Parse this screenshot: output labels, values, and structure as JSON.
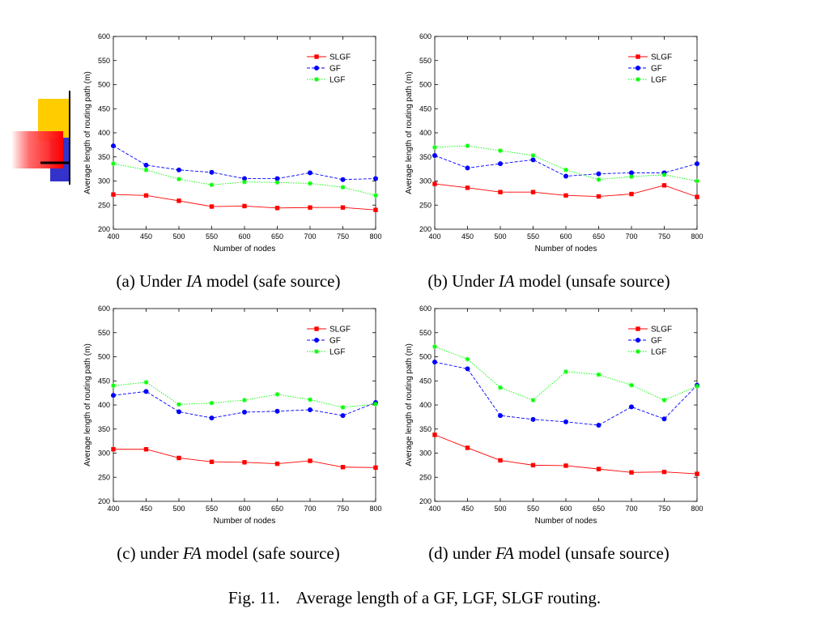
{
  "caption": "Fig. 11.    Average length of a GF, LGF, SLGF routing.",
  "chart_data": [
    {
      "type": "line",
      "caption_prefix": "(a) Under ",
      "caption_model": "IA",
      "caption_suffix": " model (safe source)",
      "xlabel": "Number of nodes",
      "ylabel": "Average length of routing path (m)",
      "x": [
        400,
        450,
        500,
        550,
        600,
        650,
        700,
        750,
        800
      ],
      "xlim": [
        400,
        800
      ],
      "ylim": [
        200,
        600
      ],
      "yticks": [
        200,
        250,
        300,
        350,
        400,
        450,
        500,
        550,
        600
      ],
      "legend_position": "top-right",
      "series": [
        {
          "name": "SLGF",
          "color": "#ff0000",
          "marker": "square",
          "values": [
            272,
            270,
            259,
            247,
            248,
            244,
            245,
            245,
            240
          ]
        },
        {
          "name": "GF",
          "color": "#0000ff",
          "marker": "circle",
          "values": [
            373,
            333,
            323,
            318,
            305,
            305,
            317,
            303,
            305
          ]
        },
        {
          "name": "LGF",
          "color": "#00ff00",
          "marker": "star",
          "values": [
            336,
            323,
            304,
            292,
            298,
            297,
            295,
            287,
            270
          ]
        }
      ]
    },
    {
      "type": "line",
      "caption_prefix": "(b) Under ",
      "caption_model": "IA",
      "caption_suffix": " model (unsafe source)",
      "xlabel": "Number of nodes",
      "ylabel": "Average length of routing path (m)",
      "x": [
        400,
        450,
        500,
        550,
        600,
        650,
        700,
        750,
        800
      ],
      "xlim": [
        400,
        800
      ],
      "ylim": [
        200,
        600
      ],
      "yticks": [
        200,
        250,
        300,
        350,
        400,
        450,
        500,
        550,
        600
      ],
      "legend_position": "top-right",
      "series": [
        {
          "name": "SLGF",
          "color": "#ff0000",
          "marker": "square",
          "values": [
            294,
            286,
            277,
            277,
            270,
            268,
            273,
            291,
            267
          ]
        },
        {
          "name": "GF",
          "color": "#0000ff",
          "marker": "circle",
          "values": [
            353,
            327,
            336,
            344,
            310,
            315,
            317,
            317,
            336
          ]
        },
        {
          "name": "LGF",
          "color": "#00ff00",
          "marker": "star",
          "values": [
            370,
            373,
            363,
            353,
            323,
            303,
            309,
            313,
            300
          ]
        }
      ]
    },
    {
      "type": "line",
      "caption_prefix": "(c) under ",
      "caption_model": "FA",
      "caption_suffix": " model (safe source)",
      "xlabel": "Number of nodes",
      "ylabel": "Average length of routing path (m)",
      "x": [
        400,
        450,
        500,
        550,
        600,
        650,
        700,
        750,
        800
      ],
      "xlim": [
        400,
        800
      ],
      "ylim": [
        200,
        600
      ],
      "yticks": [
        200,
        250,
        300,
        350,
        400,
        450,
        500,
        550,
        600
      ],
      "legend_position": "top-right",
      "series": [
        {
          "name": "SLGF",
          "color": "#ff0000",
          "marker": "square",
          "values": [
            308,
            308,
            290,
            282,
            281,
            278,
            284,
            271,
            270
          ]
        },
        {
          "name": "GF",
          "color": "#0000ff",
          "marker": "circle",
          "values": [
            420,
            428,
            386,
            373,
            385,
            387,
            390,
            378,
            405
          ]
        },
        {
          "name": "LGF",
          "color": "#00ff00",
          "marker": "star",
          "values": [
            440,
            447,
            401,
            404,
            410,
            422,
            411,
            395,
            402
          ]
        }
      ]
    },
    {
      "type": "line",
      "caption_prefix": "(d) under ",
      "caption_model": "FA",
      "caption_suffix": " model (unsafe source)",
      "xlabel": "Number of nodes",
      "ylabel": "Average length of routing path (m)",
      "x": [
        400,
        450,
        500,
        550,
        600,
        650,
        700,
        750,
        800
      ],
      "xlim": [
        400,
        800
      ],
      "ylim": [
        200,
        600
      ],
      "yticks": [
        200,
        250,
        300,
        350,
        400,
        450,
        500,
        550,
        600
      ],
      "legend_position": "top-right",
      "series": [
        {
          "name": "SLGF",
          "color": "#ff0000",
          "marker": "square",
          "values": [
            338,
            311,
            285,
            275,
            274,
            267,
            260,
            261,
            257
          ]
        },
        {
          "name": "GF",
          "color": "#0000ff",
          "marker": "circle",
          "values": [
            489,
            475,
            378,
            370,
            365,
            358,
            396,
            371,
            441
          ]
        },
        {
          "name": "LGF",
          "color": "#00ff00",
          "marker": "star",
          "values": [
            521,
            495,
            436,
            410,
            469,
            463,
            441,
            410,
            439
          ]
        }
      ]
    }
  ]
}
